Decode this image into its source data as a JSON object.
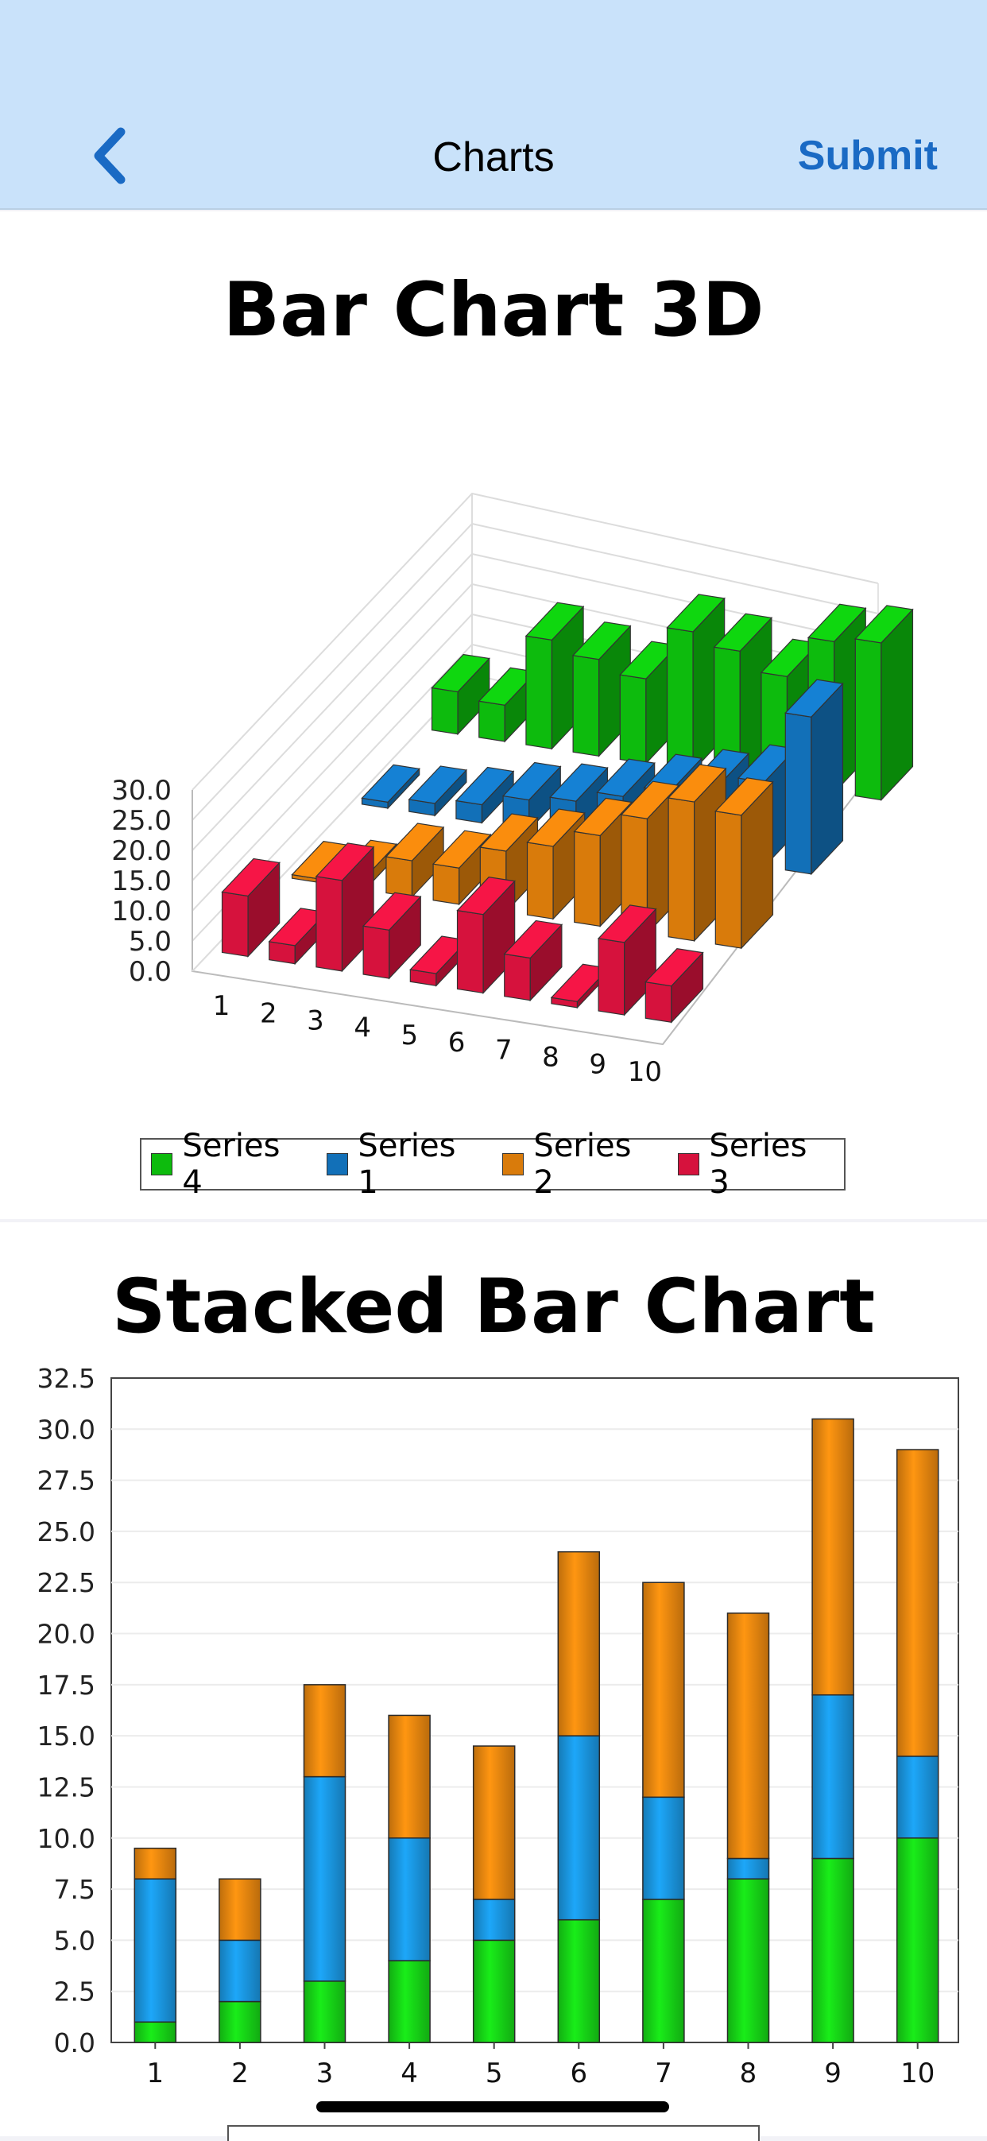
{
  "nav": {
    "back_icon": "chevron-left-icon",
    "title": "Charts",
    "submit_label": "Submit",
    "accent_color": "#1a6ac4",
    "background_color": "#c9e2fa"
  },
  "chart_data": [
    {
      "type": "bar",
      "variant": "3d",
      "title": "Bar Chart 3D",
      "categories": [
        "1",
        "2",
        "3",
        "4",
        "5",
        "6",
        "7",
        "8",
        "9",
        "10"
      ],
      "series": [
        {
          "name": "Series 4",
          "color": "#0dbb0d",
          "values": [
            7,
            6,
            18,
            16,
            14,
            23,
            21,
            18,
            25,
            26
          ]
        },
        {
          "name": "Series 1",
          "color": "#1270b8",
          "values": [
            1,
            2,
            3,
            5,
            6,
            8,
            10,
            12,
            14,
            26
          ]
        },
        {
          "name": "Series 2",
          "color": "#d97b0b",
          "values": [
            0,
            2,
            6,
            6,
            10,
            12,
            15,
            19,
            23,
            22
          ]
        },
        {
          "name": "Series 3",
          "color": "#d6123d",
          "values": [
            10,
            3,
            15,
            8,
            2,
            13,
            7,
            1,
            12,
            6
          ]
        }
      ],
      "ylim": [
        0,
        30
      ],
      "ytick_labels": [
        "0.0",
        "5.0",
        "10.0",
        "15.0",
        "20.0",
        "25.0",
        "30.0"
      ],
      "legend_position": "bottom"
    },
    {
      "type": "bar",
      "variant": "stacked",
      "title": "Stacked Bar Chart",
      "categories": [
        "1",
        "2",
        "3",
        "4",
        "5",
        "6",
        "7",
        "8",
        "9",
        "10"
      ],
      "series": [
        {
          "color": "#16d416",
          "values": [
            1,
            2,
            3,
            4,
            5,
            6,
            7,
            8,
            9,
            10
          ]
        },
        {
          "color": "#1a95de",
          "values": [
            7,
            3,
            10,
            6,
            2,
            9,
            5,
            1,
            8,
            4
          ]
        },
        {
          "color": "#e8860f",
          "values": [
            1.5,
            3,
            4.5,
            6,
            7.5,
            9,
            10.5,
            12,
            13.5,
            15
          ]
        }
      ],
      "ylim": [
        0,
        32.5
      ],
      "ytick_labels": [
        "0.0",
        "2.5",
        "5.0",
        "7.5",
        "10.0",
        "12.5",
        "15.0",
        "17.5",
        "20.0",
        "22.5",
        "25.0",
        "27.5",
        "30.0",
        "32.5"
      ],
      "grid": true
    }
  ]
}
